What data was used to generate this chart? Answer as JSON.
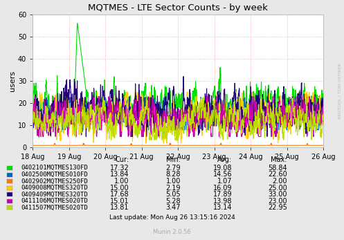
{
  "title": "MQTMES - LTE Sector Counts - by week",
  "ylabel": "users",
  "background_color": "#e8e8e8",
  "plot_bg_color": "#ffffff",
  "grid_color": "#ff9999",
  "ylim": [
    0,
    60
  ],
  "yticks": [
    0,
    10,
    20,
    30,
    40,
    50,
    60
  ],
  "x_labels": [
    "18 Aug",
    "19 Aug",
    "20 Aug",
    "21 Aug",
    "22 Aug",
    "23 Aug",
    "24 Aug",
    "25 Aug",
    "26 Aug"
  ],
  "series": [
    {
      "label": "0402101MQTMES130FD",
      "color": "#00dd00",
      "cur": 17.32,
      "min": 2.79,
      "avg": 19.08,
      "max": 58.84
    },
    {
      "label": "0402500MQTMES010FD",
      "color": "#0066bb",
      "cur": 13.84,
      "min": 8.28,
      "avg": 14.56,
      "max": 22.6
    },
    {
      "label": "0402902MQTMES250FD",
      "color": "#ff7700",
      "cur": 1.0,
      "min": 1.0,
      "avg": 1.07,
      "max": 2.0
    },
    {
      "label": "0409008MQTMES320TD",
      "color": "#ffcc00",
      "cur": 15.0,
      "min": 2.19,
      "avg": 16.09,
      "max": 25.0
    },
    {
      "label": "0409409MQTMES320TD",
      "color": "#220077",
      "cur": 17.68,
      "min": 5.05,
      "avg": 17.89,
      "max": 33.0
    },
    {
      "label": "0411106MQTMES020TD",
      "color": "#cc00aa",
      "cur": 15.01,
      "min": 5.28,
      "avg": 13.98,
      "max": 23.0
    },
    {
      "label": "0411507MQTMES020TD",
      "color": "#bbdd00",
      "cur": 13.81,
      "min": 3.47,
      "avg": 13.14,
      "max": 22.95
    }
  ],
  "last_update": "Last update: Mon Aug 26 13:15:16 2024",
  "munin_version": "Munin 2.0.56",
  "watermark": "RRDTOOL / TOBI OETIKER"
}
